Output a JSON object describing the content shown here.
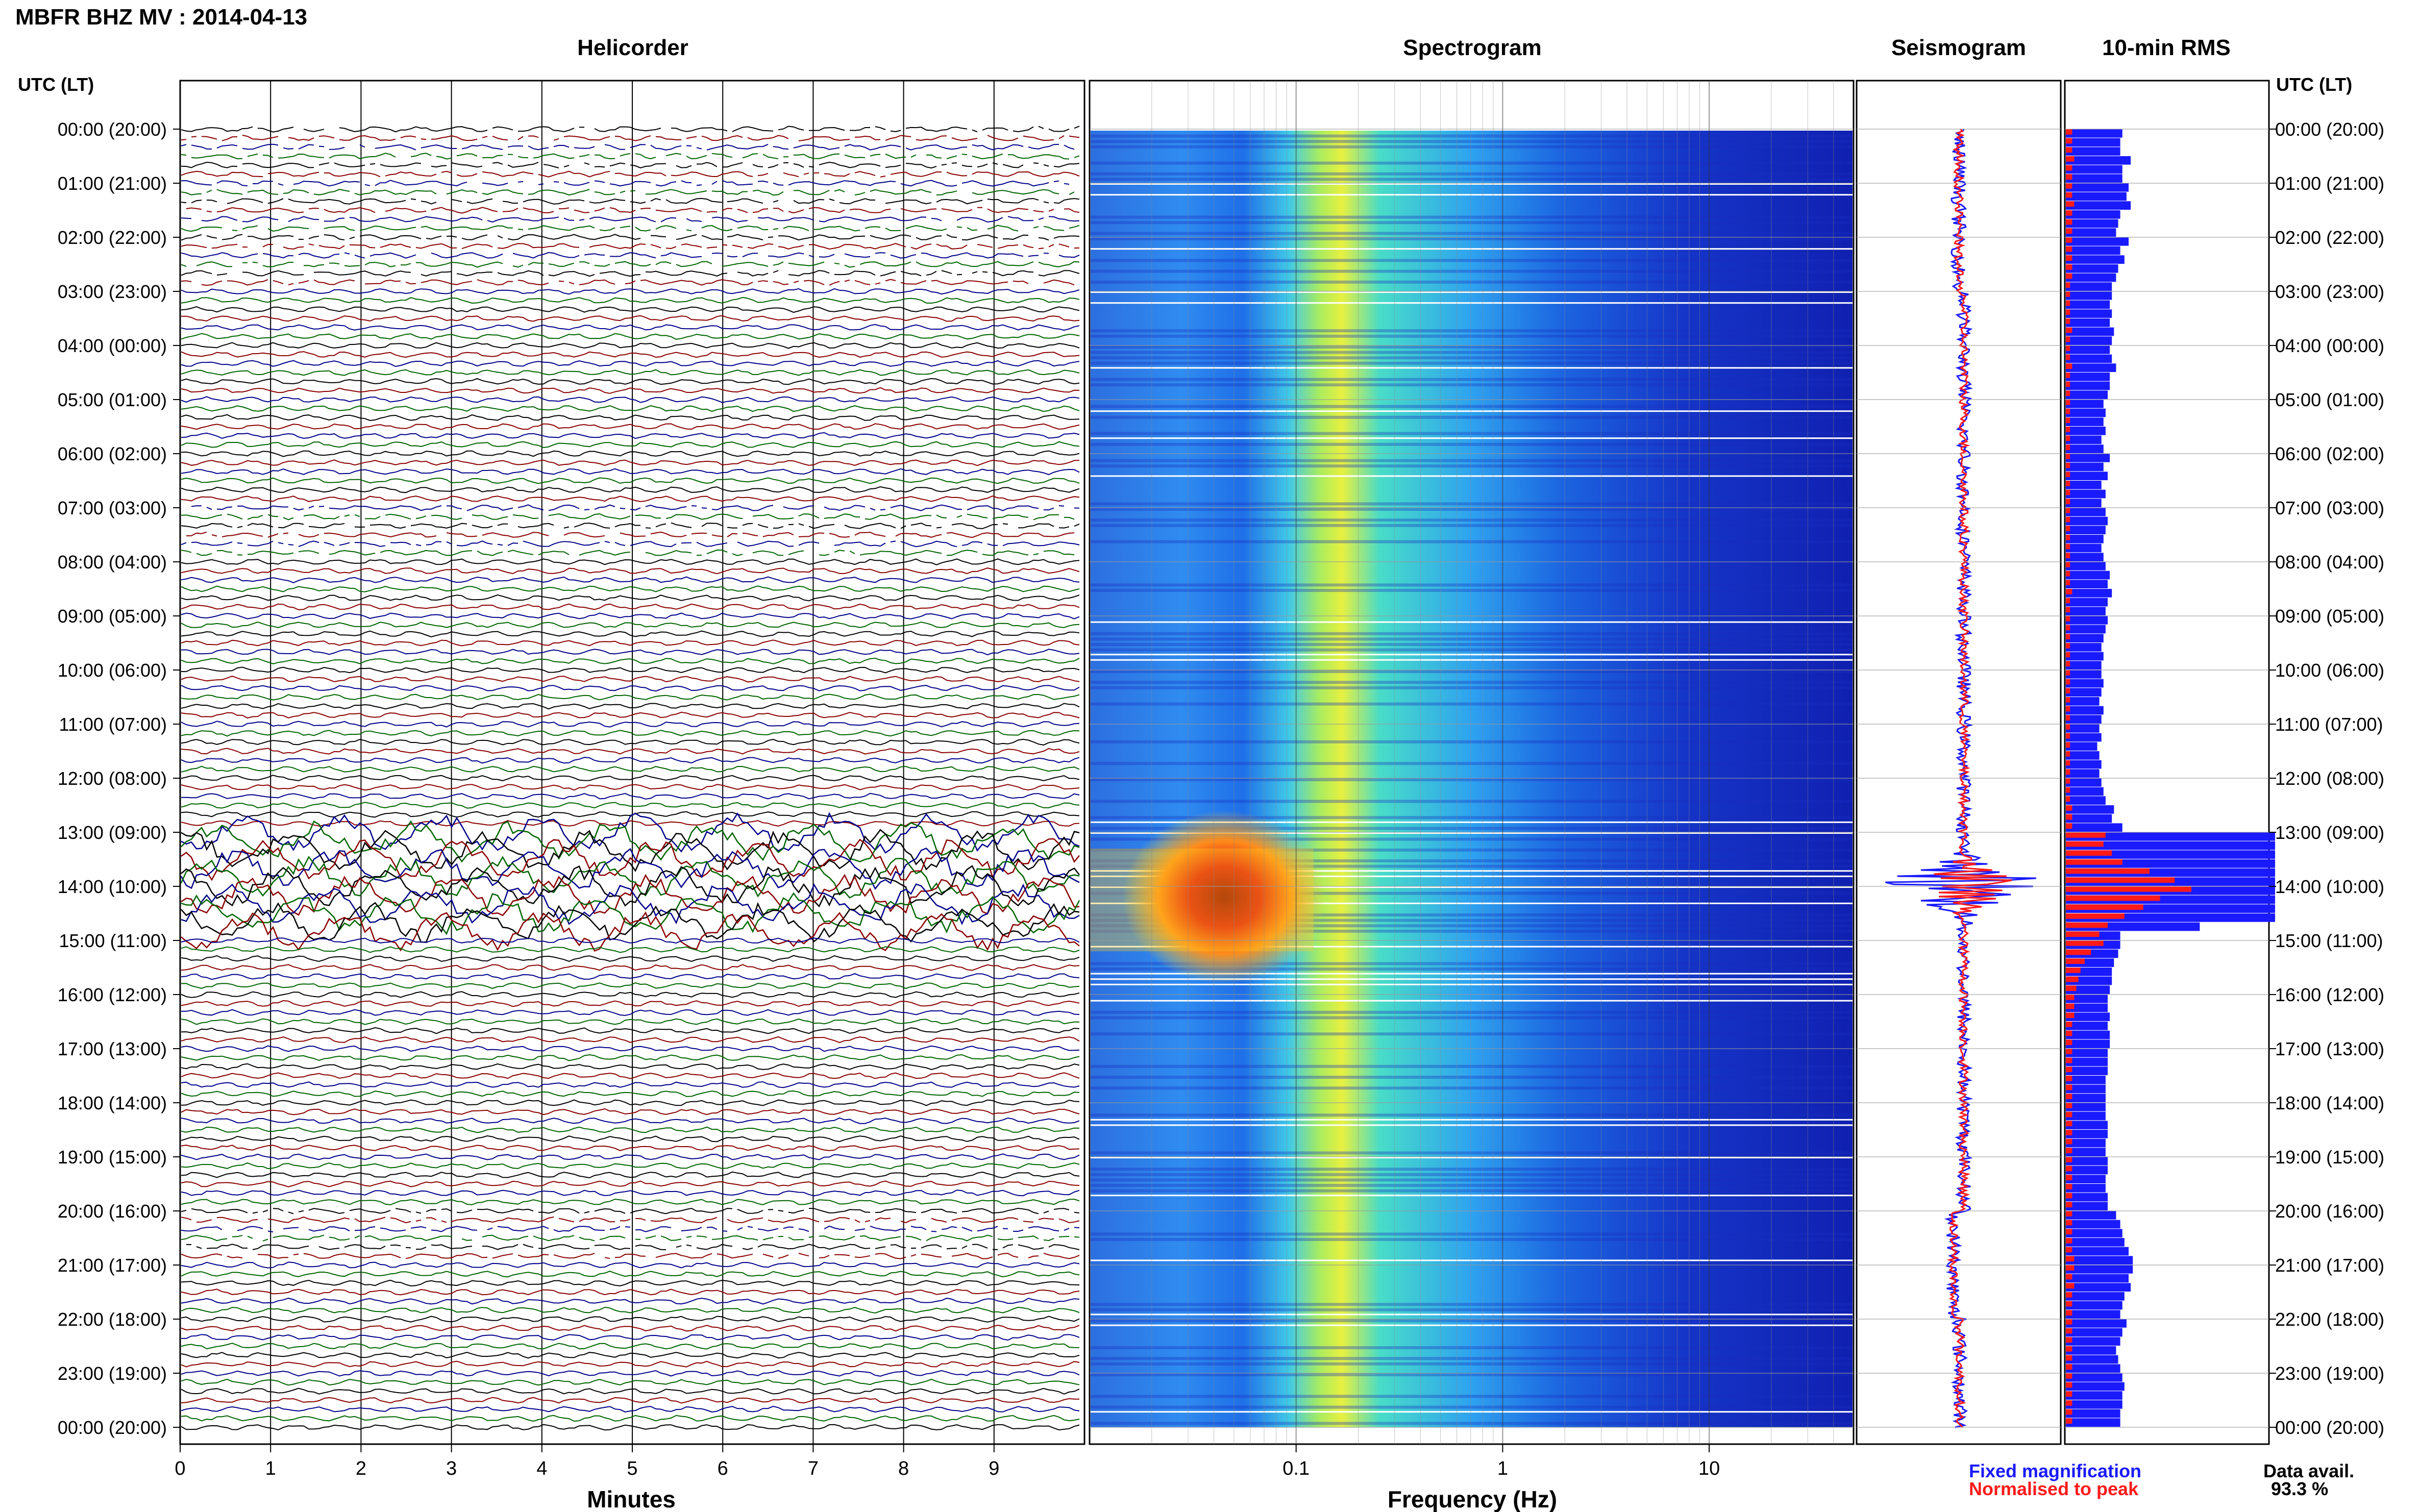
{
  "header": {
    "title": "MBFR BHZ MV : 2014-04-13"
  },
  "panels": {
    "helicorder": "Helicorder",
    "spectrogram": "Spectrogram",
    "seismogram": "Seismogram",
    "rms": "10-min RMS"
  },
  "axis": {
    "utc_label_left": "UTC (LT)",
    "utc_label_right": "UTC (LT)",
    "minutes_label": "Minutes",
    "frequency_label": "Frequency (Hz)"
  },
  "legend": {
    "fixed": "Fixed magnification",
    "normalised": "Normalised to peak",
    "fixed_color": "#1a1aff",
    "normalised_color": "#ff1a1a"
  },
  "availability": {
    "label": "Data avail.",
    "value": "93.3 %"
  },
  "colors": {
    "trace_cycle": [
      "#000000",
      "#8b0000",
      "#00008b",
      "#006400"
    ]
  },
  "chart_data": [
    {
      "type": "line",
      "panel": "Helicorder",
      "xlabel": "Minutes",
      "x_ticks": [
        0,
        1,
        2,
        3,
        4,
        5,
        6,
        7,
        8,
        9
      ],
      "xlim": [
        0,
        10
      ],
      "y_ticks": [
        "00:00 (20:00)",
        "01:00 (21:00)",
        "02:00 (22:00)",
        "03:00 (23:00)",
        "04:00 (00:00)",
        "05:00 (01:00)",
        "06:00 (02:00)",
        "07:00 (03:00)",
        "08:00 (04:00)",
        "09:00 (05:00)",
        "10:00 (06:00)",
        "11:00 (07:00)",
        "12:00 (08:00)",
        "13:00 (09:00)",
        "14:00 (10:00)",
        "15:00 (11:00)",
        "16:00 (12:00)",
        "17:00 (13:00)",
        "18:00 (14:00)",
        "19:00 (15:00)",
        "20:00 (16:00)",
        "21:00 (17:00)",
        "22:00 (18:00)",
        "23:00 (19:00)",
        "00:00 (20:00)"
      ],
      "traces_per_hour": 6,
      "high_amplitude_window_utc": [
        "13:00",
        "15:00"
      ],
      "gappy_windows_utc": [
        [
          "00:00",
          "03:00"
        ],
        [
          "07:00",
          "08:00"
        ],
        [
          "20:00",
          "21:00"
        ]
      ]
    },
    {
      "type": "heatmap",
      "panel": "Spectrogram",
      "xlabel": "Frequency (Hz)",
      "x_scale": "log",
      "xlim": [
        0.01,
        50
      ],
      "x_tick_labels": [
        "0.1",
        "1",
        "10"
      ],
      "colormap": "jet",
      "peak_energy": {
        "freq_hz": [
          0.03,
          0.1
        ],
        "utc": [
          "13:30",
          "15:00"
        ]
      }
    },
    {
      "type": "line",
      "panel": "Seismogram",
      "series": [
        {
          "name": "Fixed magnification",
          "color": "#1a1aff"
        },
        {
          "name": "Normalised to peak",
          "color": "#ff1a1a"
        }
      ],
      "peak_utc": "14:00"
    },
    {
      "type": "bar",
      "panel": "10-min RMS",
      "orientation": "horizontal",
      "bin_minutes": 10,
      "series": [
        {
          "name": "Fixed magnification",
          "color": "#1a1aff",
          "values": [
            0.27,
            0.26,
            0.26,
            0.31,
            0.27,
            0.27,
            0.3,
            0.29,
            0.31,
            0.26,
            0.25,
            0.24,
            0.3,
            0.26,
            0.28,
            0.25,
            0.24,
            0.22,
            0.22,
            0.21,
            0.22,
            0.21,
            0.23,
            0.22,
            0.21,
            0.22,
            0.24,
            0.21,
            0.21,
            0.2,
            0.18,
            0.19,
            0.18,
            0.19,
            0.17,
            0.18,
            0.21,
            0.18,
            0.2,
            0.17,
            0.19,
            0.17,
            0.19,
            0.2,
            0.19,
            0.18,
            0.17,
            0.18,
            0.19,
            0.21,
            0.2,
            0.22,
            0.2,
            0.19,
            0.2,
            0.19,
            0.18,
            0.17,
            0.18,
            0.17,
            0.17,
            0.18,
            0.17,
            0.16,
            0.18,
            0.17,
            0.16,
            0.17,
            0.15,
            0.16,
            0.17,
            0.16,
            0.17,
            0.18,
            0.19,
            0.23,
            0.22,
            0.27,
            1.0,
            1.0,
            1.0,
            1.0,
            1.0,
            1.0,
            1.0,
            1.0,
            1.0,
            1.0,
            0.64,
            0.26,
            0.26,
            0.25,
            0.23,
            0.22,
            0.22,
            0.21,
            0.2,
            0.2,
            0.21,
            0.2,
            0.21,
            0.21,
            0.2,
            0.2,
            0.2,
            0.19,
            0.19,
            0.19,
            0.19,
            0.19,
            0.2,
            0.2,
            0.19,
            0.19,
            0.2,
            0.2,
            0.19,
            0.19,
            0.2,
            0.2,
            0.24,
            0.26,
            0.27,
            0.28,
            0.3,
            0.32,
            0.32,
            0.3,
            0.31,
            0.28,
            0.27,
            0.26,
            0.29,
            0.27,
            0.26,
            0.24,
            0.25,
            0.26,
            0.27,
            0.28,
            0.27,
            0.27,
            0.26,
            0.26
          ]
        },
        {
          "name": "Normalised to peak",
          "color": "#ff1a1a",
          "values": [
            0.03,
            0.03,
            0.03,
            0.04,
            0.03,
            0.03,
            0.03,
            0.03,
            0.04,
            0.03,
            0.03,
            0.03,
            0.03,
            0.03,
            0.03,
            0.03,
            0.03,
            0.02,
            0.02,
            0.02,
            0.02,
            0.02,
            0.03,
            0.02,
            0.02,
            0.02,
            0.03,
            0.02,
            0.02,
            0.02,
            0.02,
            0.02,
            0.02,
            0.02,
            0.02,
            0.02,
            0.02,
            0.02,
            0.02,
            0.02,
            0.02,
            0.02,
            0.02,
            0.02,
            0.02,
            0.02,
            0.02,
            0.02,
            0.02,
            0.02,
            0.02,
            0.03,
            0.02,
            0.02,
            0.02,
            0.02,
            0.02,
            0.02,
            0.02,
            0.02,
            0.02,
            0.02,
            0.02,
            0.02,
            0.02,
            0.02,
            0.02,
            0.02,
            0.02,
            0.02,
            0.02,
            0.02,
            0.02,
            0.02,
            0.02,
            0.03,
            0.03,
            0.03,
            0.19,
            0.18,
            0.22,
            0.27,
            0.4,
            0.52,
            0.6,
            0.45,
            0.37,
            0.28,
            0.2,
            0.16,
            0.18,
            0.12,
            0.09,
            0.07,
            0.06,
            0.05,
            0.04,
            0.04,
            0.04,
            0.03,
            0.03,
            0.03,
            0.03,
            0.03,
            0.03,
            0.03,
            0.03,
            0.03,
            0.03,
            0.03,
            0.03,
            0.03,
            0.03,
            0.03,
            0.03,
            0.03,
            0.03,
            0.03,
            0.03,
            0.03,
            0.03,
            0.03,
            0.03,
            0.03,
            0.03,
            0.04,
            0.04,
            0.03,
            0.04,
            0.03,
            0.03,
            0.03,
            0.03,
            0.03,
            0.03,
            0.03,
            0.03,
            0.03,
            0.03,
            0.03,
            0.03,
            0.03,
            0.03,
            0.03
          ]
        }
      ]
    }
  ]
}
